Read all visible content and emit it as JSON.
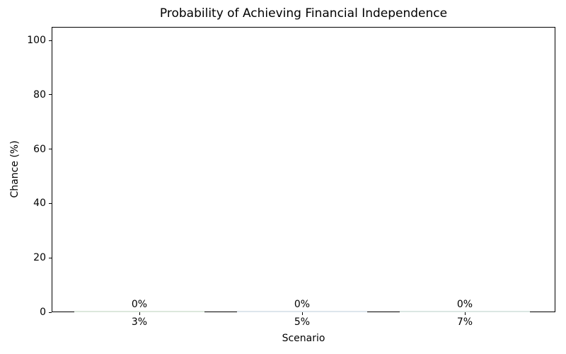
{
  "chart_data": {
    "type": "bar",
    "title": "Probability of Achieving Financial Independence",
    "xlabel": "Scenario",
    "ylabel": "Chance (%)",
    "categories": [
      "3%",
      "5%",
      "7%"
    ],
    "values": [
      0,
      0,
      0
    ],
    "bar_labels": [
      "0%",
      "0%",
      "0%"
    ],
    "bar_colors": [
      "#dce8dc",
      "#dde6ec",
      "#dbe7e3"
    ],
    "yticks": [
      0,
      20,
      40,
      60,
      80,
      100
    ],
    "ylim": [
      0,
      105
    ],
    "bar_width_fraction": 0.8,
    "grid": false,
    "legend_position": "none",
    "text_color": "#000000",
    "axis_color": "#000000"
  }
}
